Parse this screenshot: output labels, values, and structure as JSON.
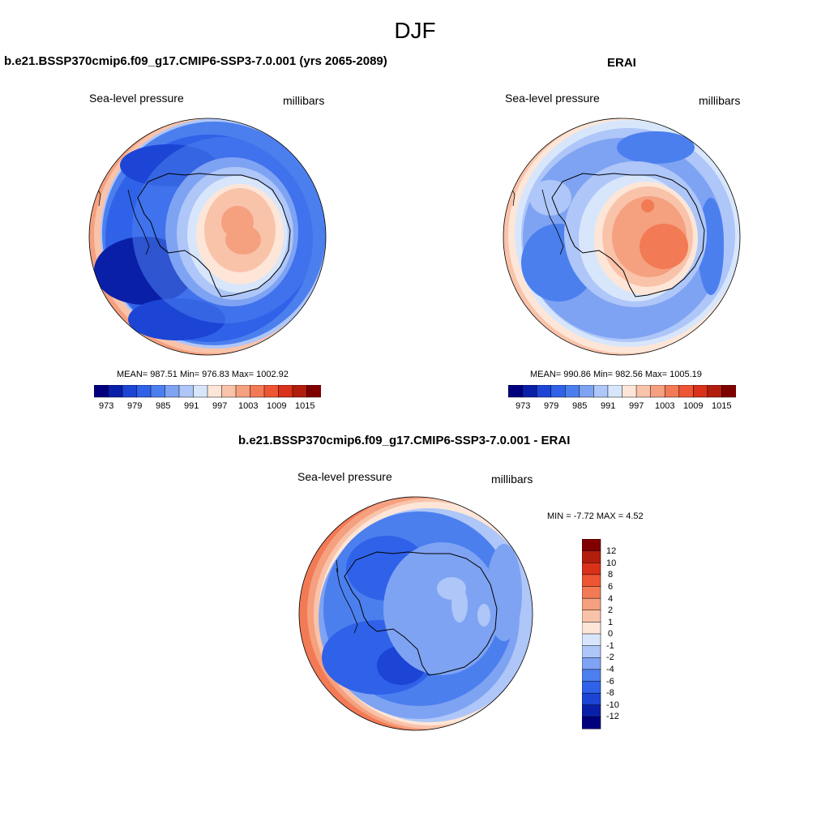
{
  "figure": {
    "title": "DJF"
  },
  "panels": [
    {
      "title": "b.e21.BSSP370cmip6.f09_g17.CMIP6-SSP3-7.0.001 (yrs 2065-2089)",
      "variable": "Sea-level pressure",
      "units": "millibars",
      "stats": "MEAN= 987.51  Min= 976.83  Max= 1002.92"
    },
    {
      "title": "ERAI",
      "variable": "Sea-level pressure",
      "units": "millibars",
      "stats": "MEAN= 990.86  Min= 982.56  Max= 1005.19"
    },
    {
      "title": "b.e21.BSSP370cmip6.f09_g17.CMIP6-SSP3-7.0.001 - ERAI",
      "variable": "Sea-level pressure",
      "units": "millibars",
      "stats": "MIN =  -7.72 MAX =   4.52"
    }
  ],
  "colorbar_abs": {
    "labels": [
      "973",
      "979",
      "985",
      "991",
      "997",
      "1003",
      "1009",
      "1015"
    ],
    "colors": [
      "#00007f",
      "#0a1fa8",
      "#1c45d6",
      "#2f62e8",
      "#4c7fee",
      "#7fa3f3",
      "#aec6f8",
      "#d8e6fb",
      "#fde6d8",
      "#f9c3aa",
      "#f5a07f",
      "#f27a55",
      "#ee5532",
      "#d9311a",
      "#b21e0e",
      "#800000"
    ]
  },
  "colorbar_diff": {
    "labels": [
      "12",
      "10",
      "8",
      "6",
      "4",
      "2",
      "1",
      "0",
      "-1",
      "-2",
      "-4",
      "-6",
      "-8",
      "-10",
      "-12"
    ],
    "colors": [
      "#800000",
      "#b21e0e",
      "#d9311a",
      "#ee5532",
      "#f27a55",
      "#f5a07f",
      "#f9c3aa",
      "#fde6d8",
      "#d8e6fb",
      "#aec6f8",
      "#7fa3f3",
      "#4c7fee",
      "#2f62e8",
      "#1c45d6",
      "#0a1fa8",
      "#00007f"
    ]
  }
}
